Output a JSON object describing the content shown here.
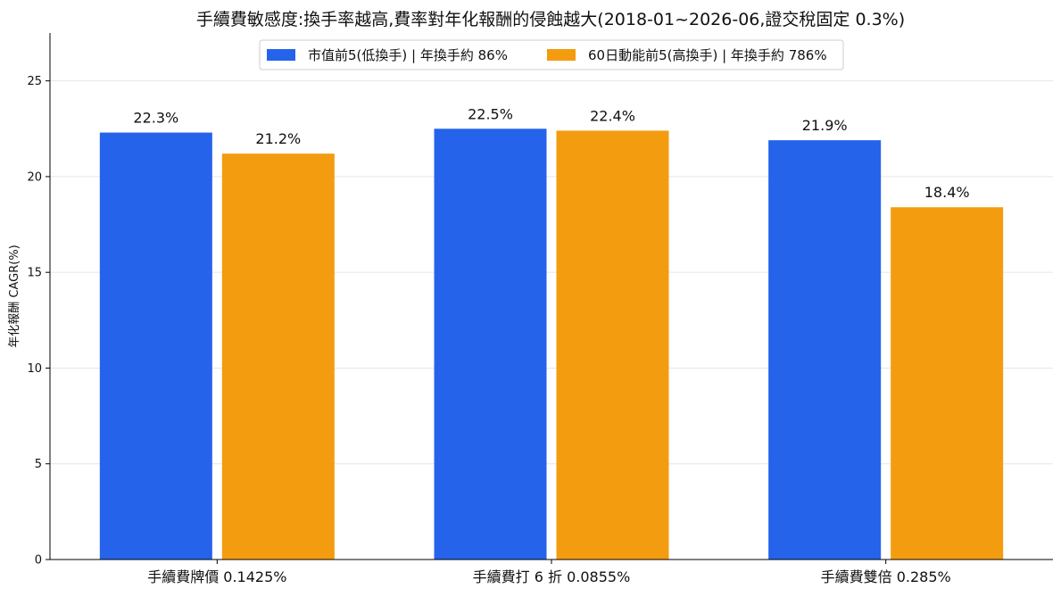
{
  "chart_data": {
    "type": "bar",
    "title": "手續費敏感度:換手率越高,費率對年化報酬的侵蝕越大(2018-01~2026-06,證交稅固定 0.3%)",
    "xlabel": "",
    "ylabel": "年化報酬 CAGR(%)",
    "categories": [
      "手續費牌價 0.1425%",
      "手續費打 6 折 0.0855%",
      "手續費雙倍 0.285%"
    ],
    "series": [
      {
        "name": "市值前5(低換手) | 年換手約 86%",
        "values": [
          22.3,
          22.5,
          21.9
        ],
        "labels": [
          "22.3%",
          "22.5%",
          "21.9%"
        ],
        "color": "#2563eb"
      },
      {
        "name": "60日動能前5(高換手) | 年換手約 786%",
        "values": [
          21.2,
          22.4,
          18.4
        ],
        "labels": [
          "21.2%",
          "22.4%",
          "18.4%"
        ],
        "color": "#f39c0f"
      }
    ],
    "ylim": [
      0,
      27.5
    ],
    "yticks": [
      "0",
      "5",
      "10",
      "15",
      "20",
      "25"
    ],
    "ytick_values": [
      0,
      5,
      10,
      15,
      20,
      25
    ],
    "grid": true,
    "legend_position": "top-center"
  }
}
